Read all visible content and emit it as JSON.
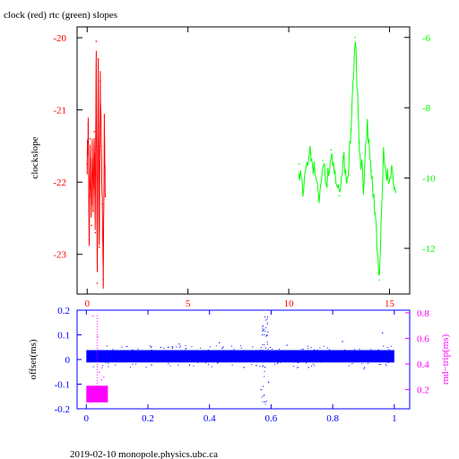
{
  "title": "clock (red) rtc (green) slopes",
  "footer": "2019-02-10 monopole.physics.ubc.ca",
  "colors": {
    "red": "#ff0000",
    "green": "#00ff00",
    "blue": "#0000ff",
    "magenta": "#ff00ff",
    "black": "#000000"
  },
  "chart_data": [
    {
      "type": "line",
      "title": "clock (red) rtc (green) slopes",
      "ylabel": "clockslope",
      "xlim": [
        -0.5,
        16
      ],
      "xticks": [
        0,
        5,
        10,
        15
      ],
      "xtick_labels": [
        "0",
        "5",
        "10",
        "15"
      ],
      "ylim_left": [
        -23.55,
        -19.85
      ],
      "yticks_left": [
        -20,
        -21,
        -22,
        -23
      ],
      "ytick_labels_left": [
        "-20",
        "-21",
        "-22",
        "-23"
      ],
      "ylim_right": [
        -13.3,
        -5.7
      ],
      "yticks_right": [
        -6,
        -8,
        -10,
        -12
      ],
      "ytick_labels_right": [
        "-6",
        "-8",
        "-10",
        "-12"
      ],
      "grid": false,
      "series": [
        {
          "name": "clock",
          "color": "#ff0000",
          "axis": "left",
          "x": [
            0.0,
            0.05,
            0.1,
            0.15,
            0.2,
            0.25,
            0.3,
            0.35,
            0.4,
            0.45,
            0.5,
            0.55,
            0.6,
            0.65,
            0.7,
            0.75,
            0.8,
            0.85,
            0.9
          ],
          "y": [
            -21.75,
            -21.2,
            -22.8,
            -21.4,
            -22.6,
            -21.55,
            -22.4,
            -21.3,
            -22.7,
            -20.05,
            -23.4,
            -20.3,
            -22.9,
            -20.6,
            -21.5,
            -22.3,
            -23.35,
            -21.1,
            -22.2
          ]
        },
        {
          "name": "rtc",
          "color": "#00ff00",
          "axis": "right",
          "x": [
            10.5,
            10.7,
            10.9,
            11.1,
            11.3,
            11.5,
            11.7,
            11.9,
            12.1,
            12.3,
            12.5,
            12.7,
            12.9,
            13.1,
            13.3,
            13.5,
            13.7,
            13.9,
            14.1,
            14.3,
            14.5,
            14.7,
            14.9,
            15.1,
            15.3
          ],
          "y": [
            -9.6,
            -10.5,
            -9.6,
            -9.3,
            -9.8,
            -10.6,
            -9.5,
            -10.2,
            -9.2,
            -9.8,
            -10.5,
            -9.4,
            -10.1,
            -8.6,
            -6.0,
            -9.0,
            -10.2,
            -8.6,
            -9.8,
            -11.0,
            -12.9,
            -9.4,
            -10.0,
            -9.7,
            -10.4
          ]
        }
      ]
    },
    {
      "type": "scatter",
      "ylabel": "offset(ms)",
      "y2label": "rnd−trip(ms)",
      "xlim": [
        -0.03,
        1.05
      ],
      "xticks": [
        0,
        0.2,
        0.4,
        0.6,
        0.8,
        1
      ],
      "xtick_labels": [
        "0",
        "0.2",
        "0.4",
        "0.6",
        "0.8",
        "1"
      ],
      "ylim_left": [
        -0.2,
        0.2
      ],
      "yticks_left": [
        0.2,
        0.1,
        0,
        -0.1,
        -0.2
      ],
      "ytick_labels_left": [
        "0.2",
        "0.1",
        "0",
        "-0.1",
        "-0.2"
      ],
      "ylim_right": [
        0.05,
        0.82
      ],
      "yticks_right": [
        0.8,
        0.6,
        0.4,
        0.2
      ],
      "ytick_labels_right": [
        "0.8",
        "0.6",
        "0.4",
        "0.2"
      ],
      "grid": false,
      "series": [
        {
          "name": "offset",
          "color": "#0000ff",
          "axis": "left",
          "band_x": [
            0,
            1
          ],
          "band_y": [
            -0.012,
            0.038
          ],
          "points_x": [
            0.13,
            0.21,
            0.3,
            0.43,
            0.51,
            0.566,
            0.572,
            0.578,
            0.584,
            0.59,
            0.65,
            0.72,
            0.83,
            0.9,
            0.96
          ],
          "points_y": [
            0.055,
            -0.02,
            0.065,
            0.07,
            -0.03,
            -0.12,
            0.12,
            -0.17,
            0.1,
            -0.09,
            0.06,
            -0.03,
            0.075,
            -0.035,
            0.11
          ]
        },
        {
          "name": "rnd-trip",
          "color": "#ff00ff",
          "axis": "right",
          "block_x": [
            0,
            0.07
          ],
          "block_y": [
            0.1,
            0.23
          ],
          "points_x": [
            0.02,
            0.035,
            0.04,
            0.048,
            0.055
          ],
          "points_y": [
            0.78,
            0.62,
            0.34,
            0.28,
            0.3
          ]
        }
      ]
    }
  ]
}
